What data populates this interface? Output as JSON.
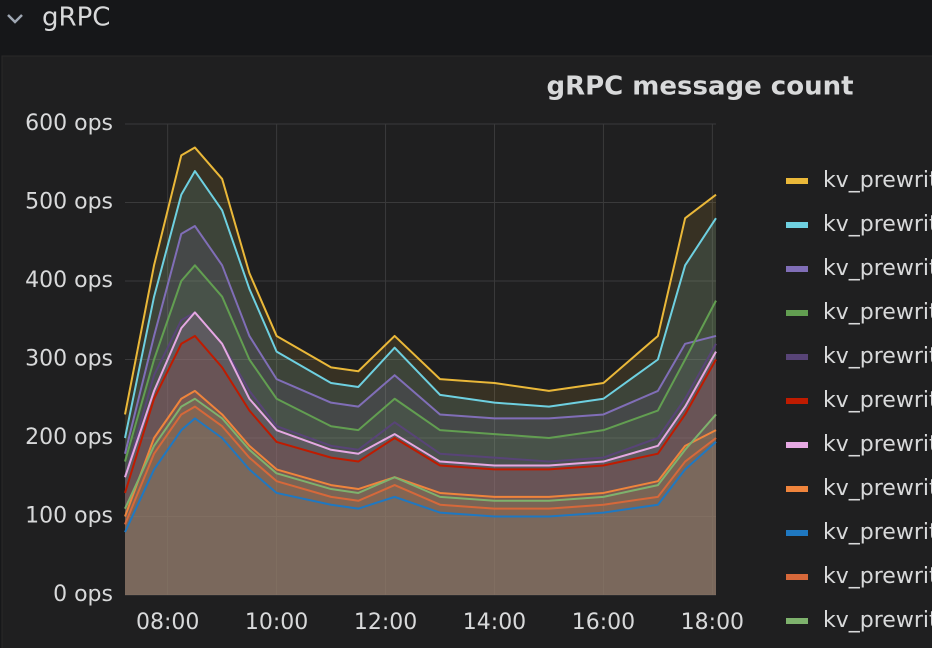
{
  "header": {
    "title": "gRPC"
  },
  "chart_data": {
    "type": "line",
    "title": "gRPC message count",
    "x": [
      "07:13",
      "07:45",
      "08:15",
      "08:30",
      "09:00",
      "09:30",
      "10:00",
      "11:00",
      "11:30",
      "12:10",
      "13:00",
      "14:00",
      "15:00",
      "16:00",
      "17:00",
      "17:30",
      "18:04"
    ],
    "xlim": [
      "07:13",
      "18:04"
    ],
    "xticks": [
      "08:00",
      "10:00",
      "12:00",
      "14:00",
      "16:00",
      "18:00"
    ],
    "ylim": [
      0,
      600
    ],
    "yticks": [
      {
        "value": 0,
        "label": "0 ops"
      },
      {
        "value": 100,
        "label": "100 ops"
      },
      {
        "value": 200,
        "label": "200 ops"
      },
      {
        "value": 300,
        "label": "300 ops"
      },
      {
        "value": 400,
        "label": "400 ops"
      },
      {
        "value": 500,
        "label": "500 ops"
      },
      {
        "value": 600,
        "label": "600 ops"
      }
    ],
    "grid": true,
    "fill": true,
    "series": [
      {
        "name": "kv_prewrit",
        "color": "#eab839",
        "values": [
          230,
          420,
          560,
          570,
          530,
          410,
          330,
          290,
          285,
          330,
          275,
          270,
          260,
          270,
          330,
          480,
          510
        ]
      },
      {
        "name": "kv_prewrit",
        "color": "#6ed0e0",
        "values": [
          200,
          380,
          510,
          540,
          490,
          390,
          310,
          270,
          265,
          315,
          255,
          245,
          240,
          250,
          300,
          420,
          480
        ]
      },
      {
        "name": "kv_prewrit",
        "color": "#806eb7",
        "values": [
          180,
          330,
          460,
          470,
          420,
          330,
          275,
          245,
          240,
          280,
          230,
          225,
          225,
          230,
          260,
          320,
          330
        ]
      },
      {
        "name": "kv_prewrit",
        "color": "#629e51",
        "values": [
          170,
          300,
          400,
          420,
          380,
          300,
          250,
          215,
          210,
          250,
          210,
          205,
          200,
          210,
          235,
          300,
          375
        ]
      },
      {
        "name": "kv_prewrit",
        "color": "#584477",
        "values": [
          150,
          280,
          350,
          360,
          320,
          260,
          215,
          190,
          185,
          220,
          180,
          175,
          170,
          175,
          200,
          250,
          320
        ]
      },
      {
        "name": "kv_prewrit",
        "color": "#bf1b00",
        "values": [
          130,
          250,
          320,
          330,
          290,
          235,
          195,
          175,
          170,
          200,
          165,
          160,
          160,
          165,
          180,
          230,
          300
        ]
      },
      {
        "name": "kv_prewrit",
        "color": "#e5a8e2",
        "values": [
          150,
          260,
          340,
          360,
          320,
          250,
          210,
          185,
          180,
          205,
          170,
          165,
          165,
          170,
          190,
          240,
          310
        ]
      },
      {
        "name": "kv_prewrit",
        "color": "#ef843c",
        "values": [
          100,
          200,
          250,
          260,
          230,
          190,
          160,
          140,
          135,
          150,
          130,
          125,
          125,
          130,
          145,
          190,
          210
        ]
      },
      {
        "name": "kv_prewrit",
        "color": "#1f78c1",
        "values": [
          80,
          160,
          210,
          225,
          200,
          160,
          130,
          115,
          110,
          125,
          105,
          100,
          100,
          105,
          115,
          160,
          195
        ]
      },
      {
        "name": "kv_prewrit",
        "color": "#d6683a",
        "values": [
          90,
          180,
          230,
          240,
          215,
          175,
          145,
          125,
          120,
          140,
          115,
          110,
          110,
          115,
          125,
          170,
          200
        ]
      },
      {
        "name": "kv_prewrit",
        "color": "#7eb26d",
        "values": [
          110,
          190,
          240,
          250,
          225,
          185,
          155,
          135,
          130,
          150,
          125,
          120,
          120,
          125,
          140,
          185,
          230
        ]
      }
    ]
  }
}
